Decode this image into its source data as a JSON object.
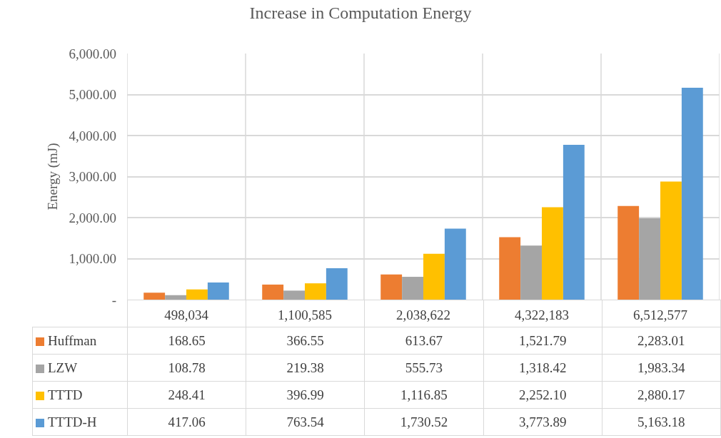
{
  "chart_data": {
    "type": "bar",
    "title": "Increase in Computation Energy",
    "ylabel": "Energy (mJ)",
    "categories": [
      "498,034",
      "1,100,585",
      "2,038,622",
      "4,322,183",
      "6,512,577"
    ],
    "series": [
      {
        "name": "Huffman",
        "color": "#ed7d31",
        "values": [
          168.65,
          366.55,
          613.67,
          1521.79,
          2283.01
        ],
        "value_labels": [
          "168.65",
          "366.55",
          "613.67",
          "1,521.79",
          "2,283.01"
        ]
      },
      {
        "name": "LZW",
        "color": "#a5a5a5",
        "values": [
          108.78,
          219.38,
          555.73,
          1318.42,
          1983.34
        ],
        "value_labels": [
          "108.78",
          "219.38",
          "555.73",
          "1,318.42",
          "1,983.34"
        ]
      },
      {
        "name": "TTTD",
        "color": "#ffc000",
        "values": [
          248.41,
          396.99,
          1116.85,
          2252.1,
          2880.17
        ],
        "value_labels": [
          "248.41",
          "396.99",
          "1,116.85",
          "2,252.10",
          "2,880.17"
        ]
      },
      {
        "name": "TTTD-H",
        "color": "#5b9bd5",
        "values": [
          417.06,
          763.54,
          1730.52,
          3773.89,
          5163.18
        ],
        "value_labels": [
          "417.06",
          "763.54",
          "1,730.52",
          "3,773.89",
          "5,163.18"
        ]
      }
    ],
    "ylim": [
      0,
      6000
    ],
    "yticks": [
      {
        "value": 0,
        "label": "-"
      },
      {
        "value": 1000,
        "label": "1,000.00"
      },
      {
        "value": 2000,
        "label": "2,000.00"
      },
      {
        "value": 3000,
        "label": "3,000.00"
      },
      {
        "value": 4000,
        "label": "4,000.00"
      },
      {
        "value": 5000,
        "label": "5,000.00"
      },
      {
        "value": 6000,
        "label": "6,000.00"
      }
    ],
    "grid": true,
    "legend": "bottom"
  }
}
